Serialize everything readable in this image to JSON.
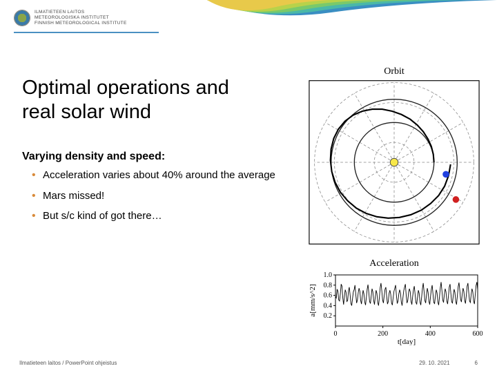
{
  "logo": {
    "line1": "ILMATIETEEN LAITOS",
    "line2": "METEOROLOGISKA INSTITUTET",
    "line3": "FINNISH METEOROLOGICAL INSTITUTE"
  },
  "swoosh_colors": [
    "#e8c94a",
    "#b8d24a",
    "#7ac96a",
    "#4ab8a8",
    "#3a8ec2"
  ],
  "title_line1": "Optimal operations and",
  "title_line2": "real solar wind",
  "subheading": "Varying density and speed:",
  "bullets": [
    "Acceleration varies about 40% around the average",
    "Mars missed!",
    "But s/c kind of got there…"
  ],
  "orbit": {
    "title": "Orbit",
    "grid_color": "#888888",
    "grid_rings": [
      30,
      60,
      90,
      120
    ],
    "grid_spokes": 12,
    "sun_color": "#f8e84a",
    "sun_border": "#444",
    "mars_path_color": "#222",
    "earth_path_color": "#222",
    "trajectory_color": "#000",
    "earth_color": "#2040e0",
    "mars_color": "#d02020",
    "earth_pos": [
      78,
      18
    ],
    "mars_pos": [
      93,
      56
    ],
    "trajectory_points": [
      [
        60,
        0
      ],
      [
        59,
        12
      ],
      [
        56,
        24
      ],
      [
        51,
        35
      ],
      [
        44,
        46
      ],
      [
        35,
        56
      ],
      [
        24,
        65
      ],
      [
        11,
        72
      ],
      [
        -3,
        77
      ],
      [
        -18,
        80
      ],
      [
        -33,
        80
      ],
      [
        -48,
        77
      ],
      [
        -62,
        71
      ],
      [
        -74,
        62
      ],
      [
        -84,
        50
      ],
      [
        -91,
        36
      ],
      [
        -95,
        20
      ],
      [
        -96,
        3
      ],
      [
        -94,
        -14
      ],
      [
        -89,
        -30
      ],
      [
        -81,
        -45
      ],
      [
        -70,
        -58
      ],
      [
        -57,
        -69
      ],
      [
        -42,
        -77
      ],
      [
        -26,
        -82
      ],
      [
        -9,
        -84
      ],
      [
        8,
        -83
      ],
      [
        25,
        -79
      ],
      [
        41,
        -72
      ],
      [
        55,
        -62
      ],
      [
        67,
        -50
      ],
      [
        76,
        -36
      ],
      [
        82,
        -20
      ],
      [
        85,
        -3
      ]
    ]
  },
  "accel": {
    "title": "Acceleration",
    "xlabel": "t[day]",
    "ylabel": "a[mm/s^2]",
    "xlim": [
      0,
      600
    ],
    "xticks": [
      0,
      200,
      400,
      600
    ],
    "ylim": [
      0,
      1.0
    ],
    "yticks": [
      0.2,
      0.4,
      0.6,
      0.8,
      1.0
    ],
    "line_color": "#000",
    "axis_color": "#000",
    "values": [
      0.58,
      0.55,
      0.72,
      0.68,
      0.51,
      0.49,
      0.63,
      0.82,
      0.78,
      0.55,
      0.42,
      0.58,
      0.71,
      0.66,
      0.48,
      0.5,
      0.69,
      0.76,
      0.61,
      0.44,
      0.4,
      0.54,
      0.67,
      0.71,
      0.8,
      0.62,
      0.45,
      0.51,
      0.65,
      0.74,
      0.68,
      0.5,
      0.43,
      0.58,
      0.7,
      0.63,
      0.47,
      0.41,
      0.56,
      0.72,
      0.81,
      0.66,
      0.48,
      0.44,
      0.59,
      0.73,
      0.67,
      0.5,
      0.42,
      0.57,
      0.7,
      0.64,
      0.46,
      0.4,
      0.55,
      0.75,
      0.84,
      0.69,
      0.51,
      0.45,
      0.6,
      0.72,
      0.76,
      0.58,
      0.43,
      0.48,
      0.64,
      0.7,
      0.62,
      0.45,
      0.41,
      0.56,
      0.68,
      0.74,
      0.8,
      0.6,
      0.44,
      0.49,
      0.63,
      0.71,
      0.65,
      0.47,
      0.4,
      0.55,
      0.69,
      0.76,
      0.82,
      0.61,
      0.45,
      0.5,
      0.66,
      0.73,
      0.67,
      0.48,
      0.42,
      0.58,
      0.71,
      0.78,
      0.62,
      0.46,
      0.43,
      0.57,
      0.7,
      0.64,
      0.47,
      0.41,
      0.56,
      0.73,
      0.84,
      0.68,
      0.5,
      0.45,
      0.61,
      0.74,
      0.66,
      0.48,
      0.42,
      0.58,
      0.72,
      0.8,
      0.63,
      0.46,
      0.44,
      0.59,
      0.71,
      0.65,
      0.47,
      0.41,
      0.57,
      0.75,
      0.86,
      0.69,
      0.51,
      0.46,
      0.62,
      0.73,
      0.67,
      0.49,
      0.43,
      0.58,
      0.76,
      0.82,
      0.64,
      0.47,
      0.45,
      0.6,
      0.72,
      0.66,
      0.48,
      0.42,
      0.59,
      0.77,
      0.85,
      0.7,
      0.52,
      0.47,
      0.63,
      0.74,
      0.68,
      0.5,
      0.44,
      0.6,
      0.78,
      0.84,
      0.66,
      0.49,
      0.46,
      0.62,
      0.73,
      0.67,
      0.49,
      0.43,
      0.61,
      0.79,
      0.86,
      0.71
    ]
  },
  "footer": {
    "left": "Ilmatieteen laitos / PowerPoint ohjeistus",
    "date": "29. 10. 2021",
    "page": "6"
  }
}
